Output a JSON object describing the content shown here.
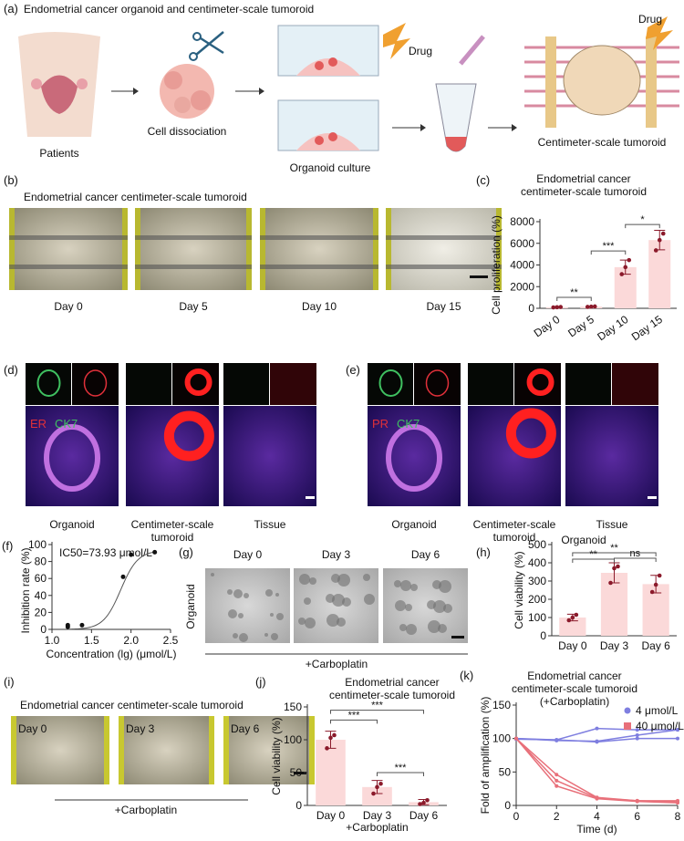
{
  "panels": {
    "a": {
      "label": "(a)",
      "title": "Endometrial cancer organoid and centimeter-scale tumoroid",
      "patients": "Patients",
      "dissociation": "Cell dissociation",
      "culture": "Organoid culture",
      "drug1": "Drug",
      "drug2": "Drug",
      "tumoroid": "Centimeter-scale tumoroid",
      "icons": [
        "uterus-icon",
        "scissors-icon",
        "culture-dish-icon",
        "lightning-icon",
        "pipette-icon",
        "tube-icon",
        "scaffold-icon"
      ]
    },
    "b": {
      "label": "(b)",
      "title": "Endometrial cancer centimeter-scale tumoroid",
      "days": [
        "Day 0",
        "Day 5",
        "Day 10",
        "Day 15"
      ]
    },
    "d": {
      "label": "(d)",
      "marker1": "ER",
      "marker2": "CK7",
      "cols": [
        "Organoid",
        "Centimeter-scale",
        "Tissue"
      ],
      "col2b": "tumoroid"
    },
    "e": {
      "label": "(e)",
      "marker1": "PR",
      "marker2": "CK7",
      "cols": [
        "Organoid",
        "Centimeter-scale",
        "Tissue"
      ],
      "col2b": "tumoroid"
    },
    "g": {
      "label": "(g)",
      "days": [
        "Day 0",
        "Day 3",
        "Day 6"
      ],
      "side": "Organoid",
      "treatment": "+Carboplatin"
    },
    "i": {
      "label": "(i)",
      "title": "Endometrial cancer centimeter-scale tumoroid",
      "days": [
        "Day 0",
        "Day 3",
        "Day 6"
      ],
      "treatment": "+Carboplatin"
    }
  },
  "colors": {
    "bar": "#fbd9d9",
    "dot": "#8b1a2b",
    "blue": "#7f7fe0",
    "red": "#e8707a",
    "er": "#e0303a",
    "ck7": "#3fc060"
  },
  "chart_data": [
    {
      "id": "c",
      "label": "(c)",
      "type": "bar",
      "title": [
        "Endometrial cancer",
        "centimeter-scale tumoroid"
      ],
      "ylabel": "Cell proliferation (%)",
      "ylim": [
        0,
        8000
      ],
      "yticks": [
        0,
        2000,
        4000,
        6000,
        8000
      ],
      "categories": [
        "Day 0",
        "Day 5",
        "Day 10",
        "Day 15"
      ],
      "values": [
        100,
        150,
        3800,
        6300
      ],
      "points": [
        [
          80,
          100,
          120
        ],
        [
          130,
          150,
          170
        ],
        [
          3150,
          3800,
          4450
        ],
        [
          5350,
          6300,
          6900
        ]
      ],
      "sd": [
        20,
        20,
        650,
        900
      ],
      "sig": [
        {
          "a": 0,
          "b": 1,
          "text": "**"
        },
        {
          "a": 1,
          "b": 2,
          "text": "***"
        },
        {
          "a": 2,
          "b": 3,
          "text": "*"
        }
      ]
    },
    {
      "id": "f",
      "label": "(f)",
      "type": "scatter",
      "title": "IC50=73.93 μmol/L",
      "xlabel": "Concentration (lg) (μmol/L)",
      "ylabel": "Inhibition rate (%)",
      "xlim": [
        1.0,
        2.5
      ],
      "ylim": [
        0,
        100
      ],
      "xticks": [
        "1.0",
        "1.5",
        "2.0",
        "2.5"
      ],
      "yticks": [
        0,
        20,
        40,
        60,
        80,
        100
      ],
      "x": [
        1.2,
        1.2,
        1.38,
        1.9,
        2.0,
        2.3
      ],
      "y": [
        3,
        5,
        5,
        62,
        88,
        91
      ],
      "fit": {
        "logIC50": 1.869,
        "top": 93,
        "bottom": 0,
        "hill": 4
      }
    },
    {
      "id": "h",
      "label": "(h)",
      "type": "bar",
      "title": [
        "Organoid"
      ],
      "ylabel": "Cell viability (%)",
      "ylim": [
        0,
        500
      ],
      "yticks": [
        0,
        100,
        200,
        300,
        400,
        500
      ],
      "categories": [
        "Day 0",
        "Day 3",
        "Day 6"
      ],
      "values": [
        100,
        345,
        283
      ],
      "points": [
        [
          85,
          100,
          115
        ],
        [
          290,
          370,
          380
        ],
        [
          240,
          280,
          330
        ]
      ],
      "sd": [
        18,
        55,
        48
      ],
      "sig": [
        {
          "a": 0,
          "b": 1,
          "text": "**"
        },
        {
          "a": 0,
          "b": 2,
          "text": "**"
        },
        {
          "a": 1,
          "b": 2,
          "text": "ns"
        }
      ]
    },
    {
      "id": "j",
      "label": "(j)",
      "type": "bar",
      "title": [
        "Endometrial cancer",
        "centimeter-scale tumoroid"
      ],
      "ylabel": "Cell viability (%)",
      "xlabel": "+Carboplatin",
      "ylim": [
        0,
        150
      ],
      "yticks": [
        0,
        50,
        100,
        150
      ],
      "categories": [
        "Day 0",
        "Day 3",
        "Day 6"
      ],
      "values": [
        100,
        28,
        5
      ],
      "points": [
        [
          87,
          103,
          107
        ],
        [
          18,
          28,
          33
        ],
        [
          2,
          4,
          8
        ]
      ],
      "sd": [
        13,
        10,
        4
      ],
      "sig": [
        {
          "a": 0,
          "b": 1,
          "text": "***"
        },
        {
          "a": 0,
          "b": 2,
          "text": "***"
        },
        {
          "a": 1,
          "b": 2,
          "text": "***"
        }
      ]
    },
    {
      "id": "k",
      "label": "(k)",
      "type": "line",
      "title": [
        "Endometrial cancer",
        "centimeter-scale tumoroid",
        "(+Carboplatin)"
      ],
      "xlabel": "Time (d)",
      "ylabel": "Fold of amplification (%)",
      "xlim": [
        0,
        8
      ],
      "ylim": [
        0,
        150
      ],
      "xticks": [
        0,
        2,
        4,
        6,
        8
      ],
      "yticks": [
        0,
        50,
        100,
        150
      ],
      "legend": "top-right",
      "x": [
        0,
        2,
        4,
        6,
        8
      ],
      "series": [
        {
          "name": "4 μmol/L",
          "color": "#7f7fe0",
          "replicates": [
            [
              100,
              98,
              115,
              113,
              113
            ],
            [
              100,
              97,
              96,
              105,
              113
            ],
            [
              99,
              98,
              95,
              100,
              100
            ]
          ]
        },
        {
          "name": "40 μmol/L",
          "color": "#e8707a",
          "replicates": [
            [
              100,
              46,
              12,
              7,
              7
            ],
            [
              100,
              37,
              11,
              7,
              5
            ],
            [
              100,
              29,
              10,
              6,
              4
            ]
          ]
        }
      ]
    }
  ]
}
